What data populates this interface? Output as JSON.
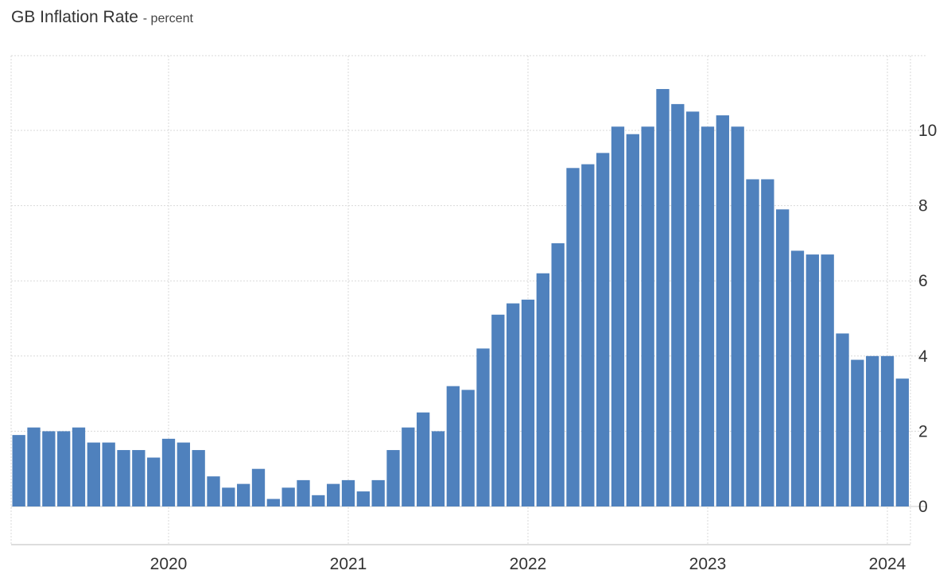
{
  "chart_data": {
    "type": "bar",
    "title": "GB Inflation Rate",
    "subtitle": "percent",
    "xlabel": "",
    "ylabel": "",
    "ylim": [
      -1.0,
      11.5
    ],
    "yticks": [
      0,
      2,
      4,
      6,
      8,
      10
    ],
    "xticks": [
      "2020",
      "2021",
      "2022",
      "2023",
      "2024"
    ],
    "grid": true,
    "bar_color": "#4f81bd",
    "x": [
      "2019-03",
      "2019-04",
      "2019-05",
      "2019-06",
      "2019-07",
      "2019-08",
      "2019-09",
      "2019-10",
      "2019-11",
      "2019-12",
      "2020-01",
      "2020-02",
      "2020-03",
      "2020-04",
      "2020-05",
      "2020-06",
      "2020-07",
      "2020-08",
      "2020-09",
      "2020-10",
      "2020-11",
      "2020-12",
      "2021-01",
      "2021-02",
      "2021-03",
      "2021-04",
      "2021-05",
      "2021-06",
      "2021-07",
      "2021-08",
      "2021-09",
      "2021-10",
      "2021-11",
      "2021-12",
      "2022-01",
      "2022-02",
      "2022-03",
      "2022-04",
      "2022-05",
      "2022-06",
      "2022-07",
      "2022-08",
      "2022-09",
      "2022-10",
      "2022-11",
      "2022-12",
      "2023-01",
      "2023-02",
      "2023-03",
      "2023-04",
      "2023-05",
      "2023-06",
      "2023-07",
      "2023-08",
      "2023-09",
      "2023-10",
      "2023-11",
      "2023-12",
      "2024-01",
      "2024-02"
    ],
    "values": [
      1.9,
      2.1,
      2.0,
      2.0,
      2.1,
      1.7,
      1.7,
      1.5,
      1.5,
      1.3,
      1.8,
      1.7,
      1.5,
      0.8,
      0.5,
      0.6,
      1.0,
      0.2,
      0.5,
      0.7,
      0.3,
      0.6,
      0.7,
      0.4,
      0.7,
      1.5,
      2.1,
      2.5,
      2.0,
      3.2,
      3.1,
      4.2,
      5.1,
      5.4,
      5.5,
      6.2,
      7.0,
      9.0,
      9.1,
      9.4,
      10.1,
      9.9,
      10.1,
      11.1,
      10.7,
      10.5,
      10.1,
      10.4,
      10.1,
      8.7,
      8.7,
      7.9,
      6.8,
      6.7,
      6.7,
      4.6,
      3.9,
      4.0,
      4.0,
      3.4
    ]
  }
}
